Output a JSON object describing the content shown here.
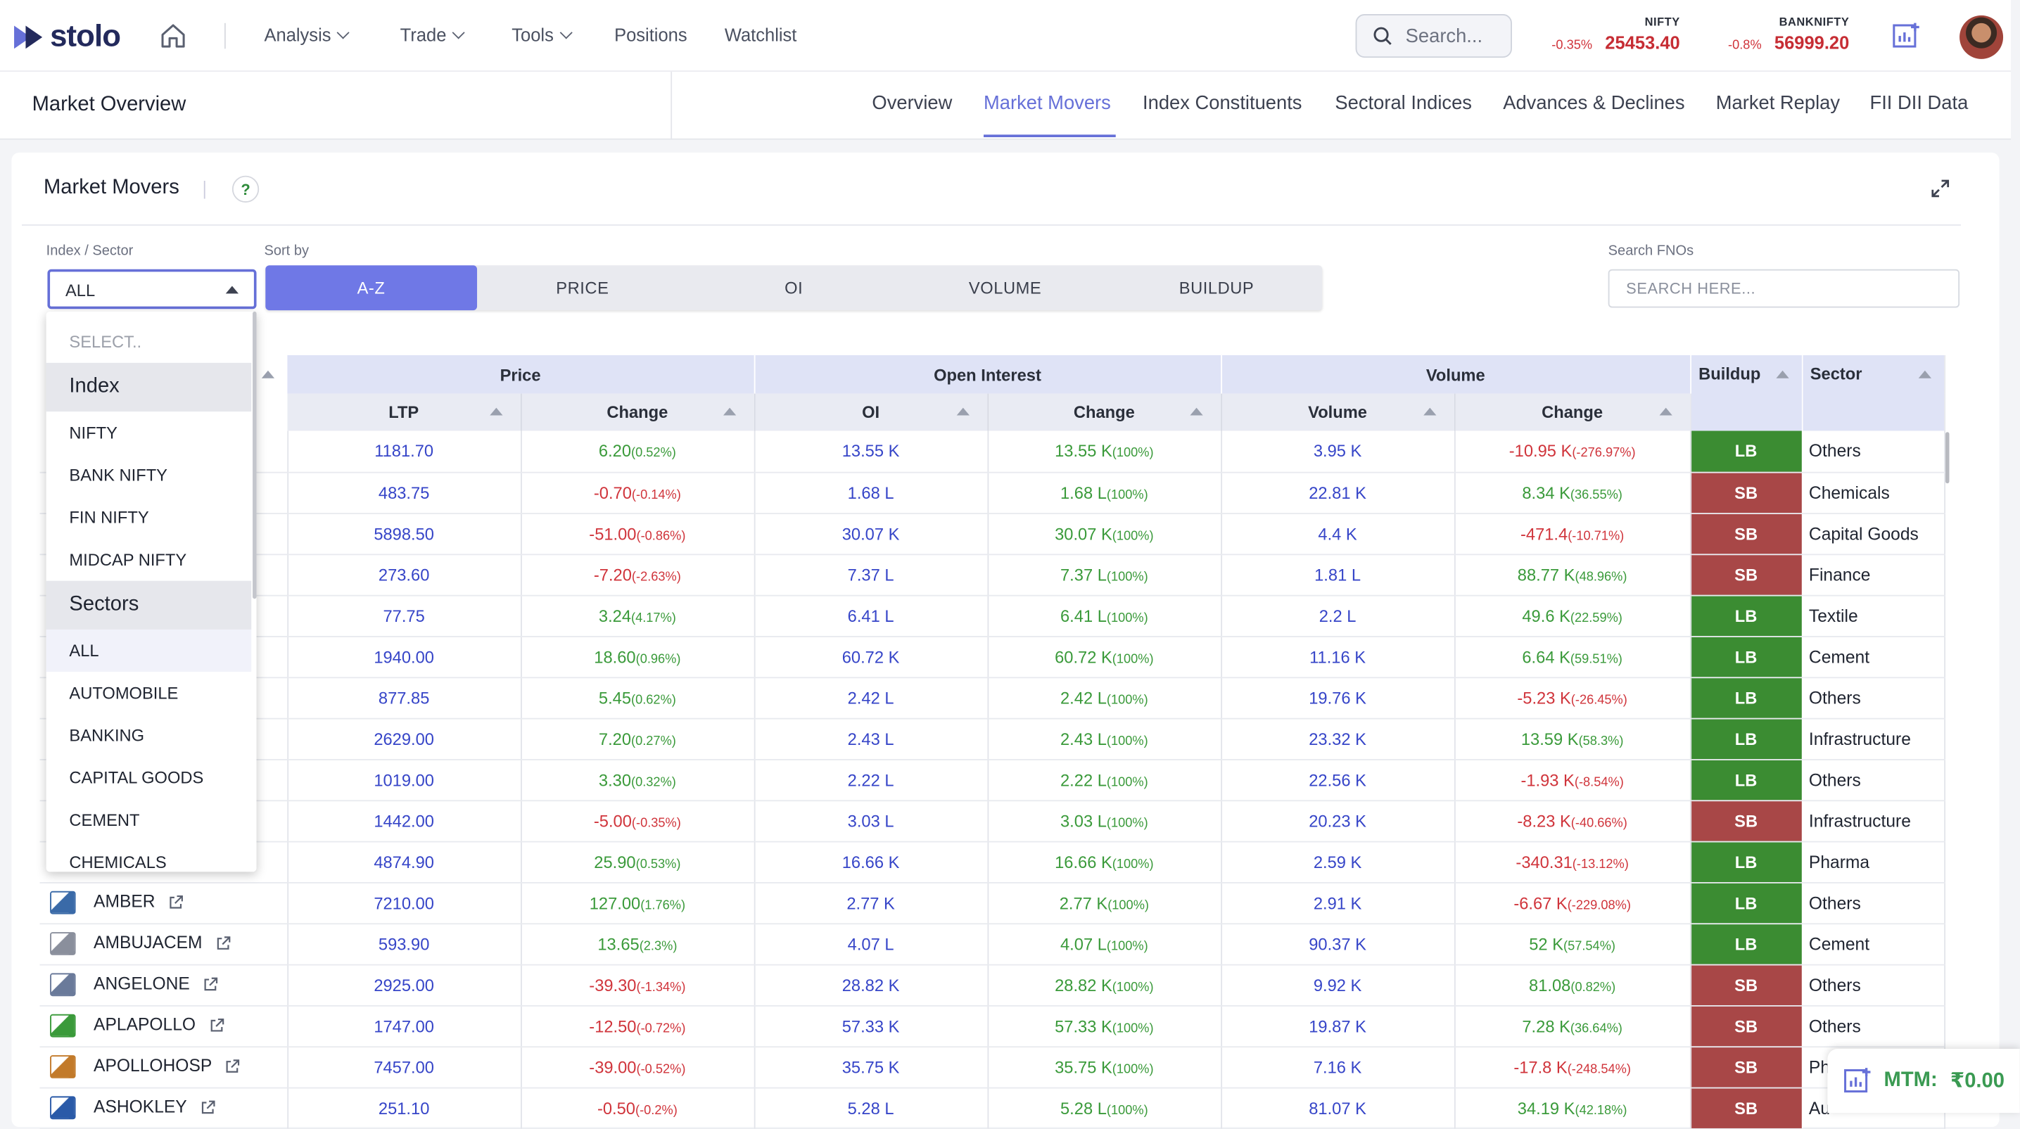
{
  "app": {
    "name": "stolo"
  },
  "nav": [
    "Analysis",
    "Trade",
    "Tools",
    "Positions",
    "Watchlist"
  ],
  "search": {
    "placeholder": "Search..."
  },
  "indices": [
    {
      "name": "NIFTY",
      "change": "-0.35%",
      "value": "25453.40"
    },
    {
      "name": "BANKNIFTY",
      "change": "-0.8%",
      "value": "56999.20"
    }
  ],
  "subheader": {
    "title": "Market Overview",
    "tabs": [
      "Overview",
      "Market Movers",
      "Index Constituents",
      "Sectoral Indices",
      "Advances & Declines",
      "Market Replay",
      "FII DII Data"
    ],
    "active_tab": "Market Movers"
  },
  "card": {
    "title": "Market Movers",
    "help": "?"
  },
  "filters": {
    "index_label": "Index / Sector",
    "index_value": "ALL",
    "sort_label": "Sort by",
    "sort_options": [
      "A-Z",
      "PRICE",
      "OI",
      "VOLUME",
      "BUILDUP"
    ],
    "active_sort": "A-Z",
    "search_label": "Search FNOs",
    "search_placeholder": "SEARCH HERE..."
  },
  "dropdown": {
    "placeholder": "SELECT..",
    "index_group": "Index",
    "index_items": [
      "NIFTY",
      "BANK NIFTY",
      "FIN NIFTY",
      "MIDCAP NIFTY"
    ],
    "sector_group": "Sectors",
    "sector_items": [
      "ALL",
      "AUTOMOBILE",
      "BANKING",
      "CAPITAL GOODS",
      "CEMENT",
      "CHEMICALS"
    ],
    "selected": "ALL"
  },
  "table": {
    "groups": [
      "Price",
      "Open Interest",
      "Volume"
    ],
    "columns": [
      "LTP",
      "Change",
      "OI",
      "Change",
      "Volume",
      "Change"
    ],
    "buildup_header": "Buildup",
    "sector_header": "Sector",
    "rows": [
      {
        "sym": "",
        "ltp": "1181.70",
        "chg": "6.20",
        "chgp": "(0.52%)",
        "chg_dir": "pos",
        "oi": "13.55 K",
        "oic": "13.55 K",
        "oicp": "(100%)",
        "vol": "3.95 K",
        "volc": "-10.95 K",
        "volcp": "(-276.97%)",
        "volc_dir": "neg",
        "bu": "LB",
        "sector": "Others"
      },
      {
        "sym": "",
        "ltp": "483.75",
        "chg": "-0.70",
        "chgp": "(-0.14%)",
        "chg_dir": "neg",
        "oi": "1.68 L",
        "oic": "1.68 L",
        "oicp": "(100%)",
        "vol": "22.81 K",
        "volc": "8.34 K",
        "volcp": "(36.55%)",
        "volc_dir": "pos",
        "bu": "SB",
        "sector": "Chemicals"
      },
      {
        "sym": "",
        "ltp": "5898.50",
        "chg": "-51.00",
        "chgp": "(-0.86%)",
        "chg_dir": "neg",
        "oi": "30.07 K",
        "oic": "30.07 K",
        "oicp": "(100%)",
        "vol": "4.4 K",
        "volc": "-471.4",
        "volcp": "(-10.71%)",
        "volc_dir": "neg",
        "bu": "SB",
        "sector": "Capital Goods"
      },
      {
        "sym": "",
        "ltp": "273.60",
        "chg": "-7.20",
        "chgp": "(-2.63%)",
        "chg_dir": "neg",
        "oi": "7.37 L",
        "oic": "7.37 L",
        "oicp": "(100%)",
        "vol": "1.81 L",
        "volc": "88.77 K",
        "volcp": "(48.96%)",
        "volc_dir": "pos",
        "bu": "SB",
        "sector": "Finance"
      },
      {
        "sym": "",
        "ltp": "77.75",
        "chg": "3.24",
        "chgp": "(4.17%)",
        "chg_dir": "pos",
        "oi": "6.41 L",
        "oic": "6.41 L",
        "oicp": "(100%)",
        "vol": "2.2 L",
        "volc": "49.6 K",
        "volcp": "(22.59%)",
        "volc_dir": "pos",
        "bu": "LB",
        "sector": "Textile"
      },
      {
        "sym": "",
        "ltp": "1940.00",
        "chg": "18.60",
        "chgp": "(0.96%)",
        "chg_dir": "pos",
        "oi": "60.72 K",
        "oic": "60.72 K",
        "oicp": "(100%)",
        "vol": "11.16 K",
        "volc": "6.64 K",
        "volcp": "(59.51%)",
        "volc_dir": "pos",
        "bu": "LB",
        "sector": "Cement"
      },
      {
        "sym": "",
        "ltp": "877.85",
        "chg": "5.45",
        "chgp": "(0.62%)",
        "chg_dir": "pos",
        "oi": "2.42 L",
        "oic": "2.42 L",
        "oicp": "(100%)",
        "vol": "19.76 K",
        "volc": "-5.23 K",
        "volcp": "(-26.45%)",
        "volc_dir": "neg",
        "bu": "LB",
        "sector": "Others"
      },
      {
        "sym": "",
        "ltp": "2629.00",
        "chg": "7.20",
        "chgp": "(0.27%)",
        "chg_dir": "pos",
        "oi": "2.43 L",
        "oic": "2.43 L",
        "oicp": "(100%)",
        "vol": "23.32 K",
        "volc": "13.59 K",
        "volcp": "(58.3%)",
        "volc_dir": "pos",
        "bu": "LB",
        "sector": "Infrastructure"
      },
      {
        "sym": "",
        "ltp": "1019.00",
        "chg": "3.30",
        "chgp": "(0.32%)",
        "chg_dir": "pos",
        "oi": "2.22 L",
        "oic": "2.22 L",
        "oicp": "(100%)",
        "vol": "22.56 K",
        "volc": "-1.93 K",
        "volcp": "(-8.54%)",
        "volc_dir": "neg",
        "bu": "LB",
        "sector": "Others"
      },
      {
        "sym": "",
        "ltp": "1442.00",
        "chg": "-5.00",
        "chgp": "(-0.35%)",
        "chg_dir": "neg",
        "oi": "3.03 L",
        "oic": "3.03 L",
        "oicp": "(100%)",
        "vol": "20.23 K",
        "volc": "-8.23 K",
        "volcp": "(-40.66%)",
        "volc_dir": "neg",
        "bu": "SB",
        "sector": "Infrastructure"
      },
      {
        "sym": "",
        "ltp": "4874.90",
        "chg": "25.90",
        "chgp": "(0.53%)",
        "chg_dir": "pos",
        "oi": "16.66 K",
        "oic": "16.66 K",
        "oicp": "(100%)",
        "vol": "2.59 K",
        "volc": "-340.31",
        "volcp": "(-13.12%)",
        "volc_dir": "neg",
        "bu": "LB",
        "sector": "Pharma"
      },
      {
        "sym": "AMBER",
        "ltp": "7210.00",
        "chg": "127.00",
        "chgp": "(1.76%)",
        "chg_dir": "pos",
        "oi": "2.77 K",
        "oic": "2.77 K",
        "oicp": "(100%)",
        "vol": "2.91 K",
        "volc": "-6.67 K",
        "volcp": "(-229.08%)",
        "volc_dir": "neg",
        "bu": "LB",
        "sector": "Others"
      },
      {
        "sym": "AMBUJACEM",
        "ltp": "593.90",
        "chg": "13.65",
        "chgp": "(2.3%)",
        "chg_dir": "pos",
        "oi": "4.07 L",
        "oic": "4.07 L",
        "oicp": "(100%)",
        "vol": "90.37 K",
        "volc": "52 K",
        "volcp": "(57.54%)",
        "volc_dir": "pos",
        "bu": "LB",
        "sector": "Cement"
      },
      {
        "sym": "ANGELONE",
        "ltp": "2925.00",
        "chg": "-39.30",
        "chgp": "(-1.34%)",
        "chg_dir": "neg",
        "oi": "28.82 K",
        "oic": "28.82 K",
        "oicp": "(100%)",
        "vol": "9.92 K",
        "volc": "81.08",
        "volcp": "(0.82%)",
        "volc_dir": "pos",
        "bu": "SB",
        "sector": "Others"
      },
      {
        "sym": "APLAPOLLO",
        "ltp": "1747.00",
        "chg": "-12.50",
        "chgp": "(-0.72%)",
        "chg_dir": "neg",
        "oi": "57.33 K",
        "oic": "57.33 K",
        "oicp": "(100%)",
        "vol": "19.87 K",
        "volc": "7.28 K",
        "volcp": "(36.64%)",
        "volc_dir": "pos",
        "bu": "SB",
        "sector": "Others"
      },
      {
        "sym": "APOLLOHOSP",
        "ltp": "7457.00",
        "chg": "-39.00",
        "chgp": "(-0.52%)",
        "chg_dir": "neg",
        "oi": "35.75 K",
        "oic": "35.75 K",
        "oicp": "(100%)",
        "vol": "7.16 K",
        "volc": "-17.8 K",
        "volcp": "(-248.54%)",
        "volc_dir": "neg",
        "bu": "SB",
        "sector": "Ph"
      },
      {
        "sym": "ASHOKLEY",
        "ltp": "251.10",
        "chg": "-0.50",
        "chgp": "(-0.2%)",
        "chg_dir": "neg",
        "oi": "5.28 L",
        "oic": "5.28 L",
        "oicp": "(100%)",
        "vol": "81.07 K",
        "volc": "34.19 K",
        "volcp": "(42.18%)",
        "volc_dir": "pos",
        "bu": "SB",
        "sector": "Au"
      }
    ]
  },
  "mtm": {
    "label": "MTM:",
    "value": "₹0.00"
  },
  "colors": {
    "accent": "#6670d8",
    "long_buildup": "#3b8c32",
    "short_buildup": "#a84747",
    "positive": "#3a9a3a",
    "negative": "#d0343b"
  }
}
